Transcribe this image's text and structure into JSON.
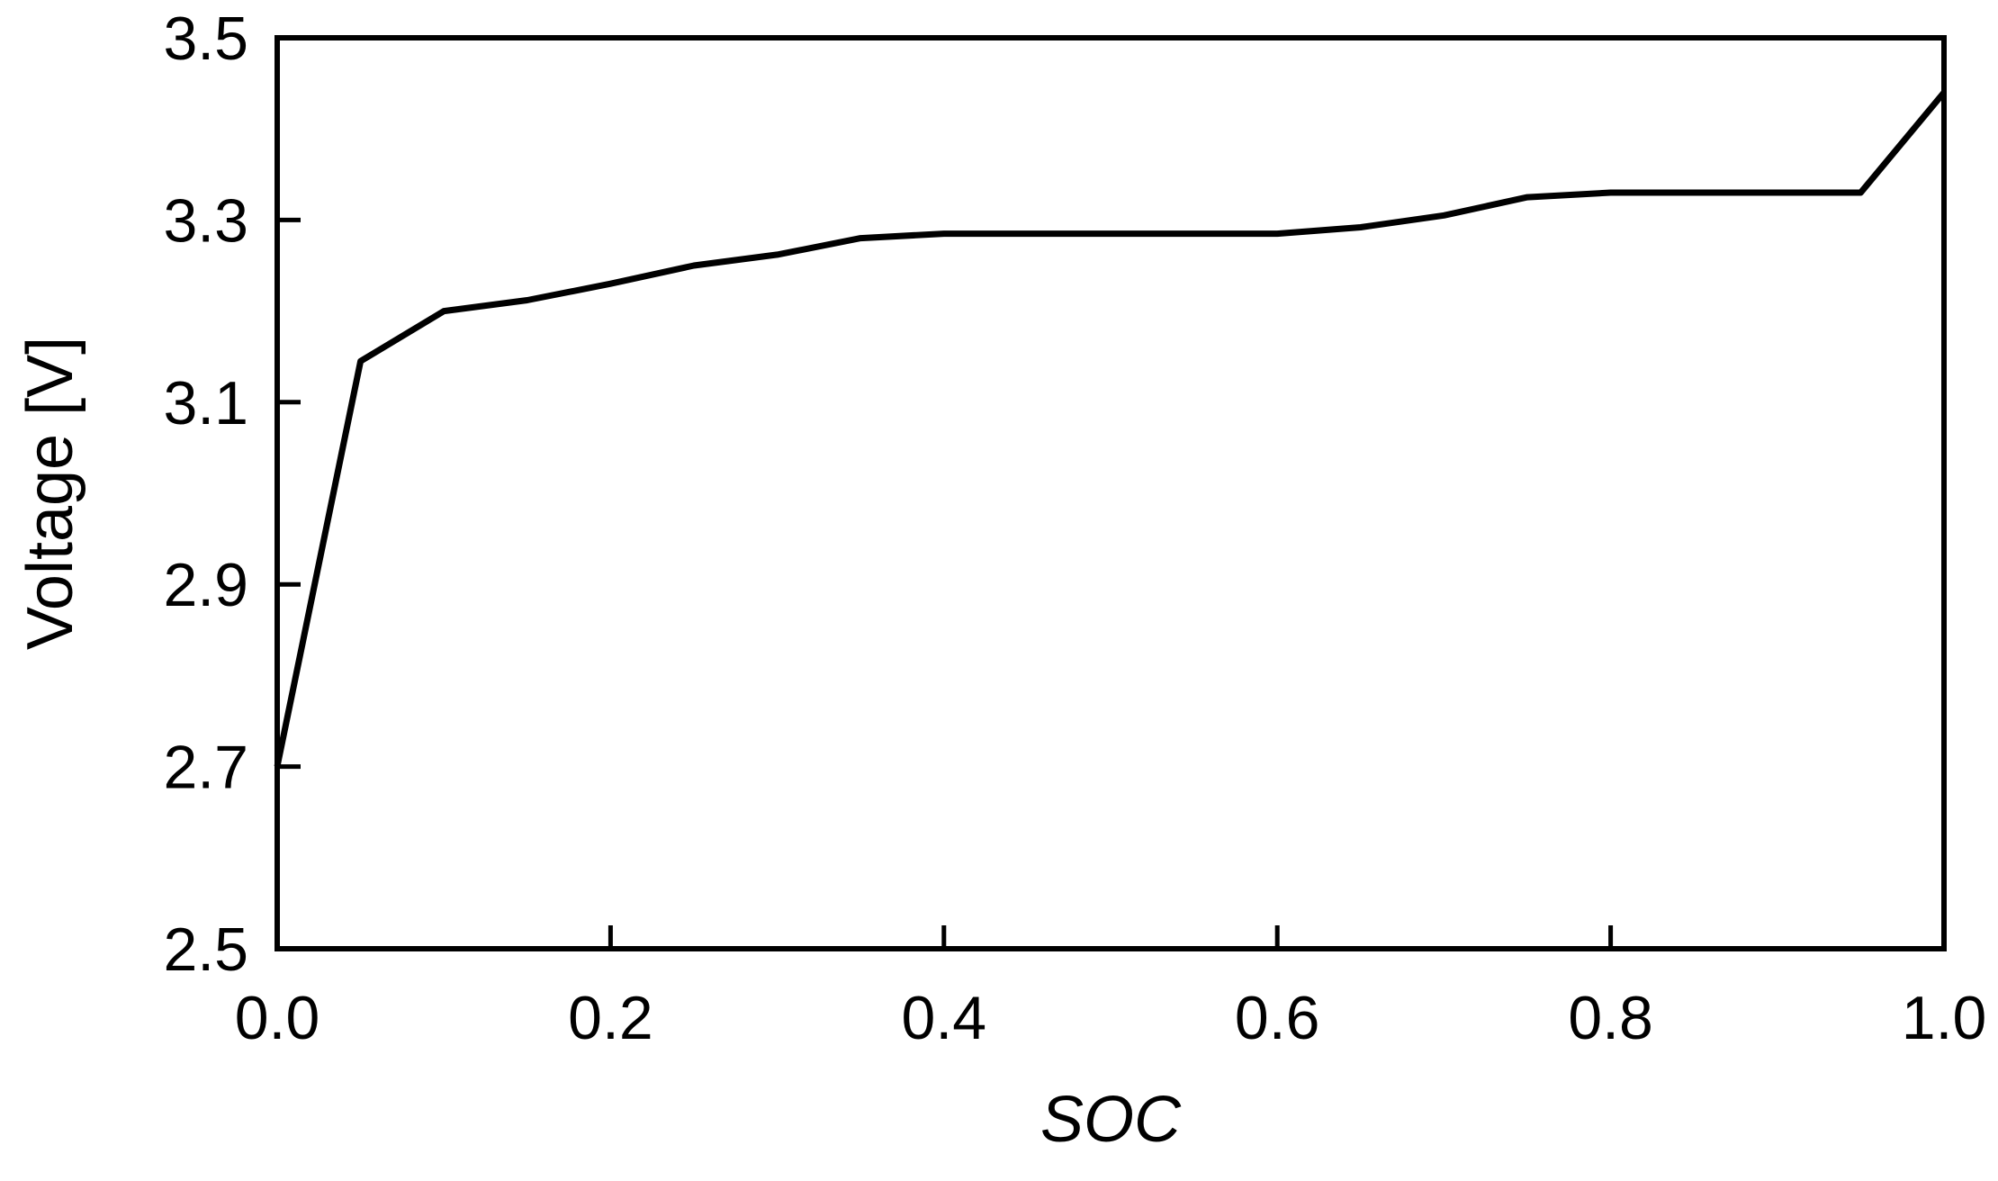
{
  "chart_data": {
    "type": "line",
    "title": "",
    "xlabel": "SOC",
    "ylabel": "Voltage [V]",
    "xlim": [
      0.0,
      1.0
    ],
    "ylim": [
      2.5,
      3.5
    ],
    "x_ticks": [
      "0.0",
      "0.2",
      "0.4",
      "0.6",
      "0.8",
      "1.0"
    ],
    "y_ticks": [
      "2.5",
      "2.7",
      "2.9",
      "3.1",
      "3.3",
      "3.5"
    ],
    "grid": false,
    "legend": "none",
    "line_color": "#000000",
    "series": [
      {
        "x": [
          0.0,
          0.05,
          0.1,
          0.15,
          0.2,
          0.25,
          0.3,
          0.35,
          0.4,
          0.45,
          0.5,
          0.55,
          0.6,
          0.65,
          0.7,
          0.75,
          0.8,
          0.85,
          0.9,
          0.95,
          1.0
        ],
        "y": [
          2.7,
          3.145,
          3.2,
          3.212,
          3.23,
          3.25,
          3.262,
          3.28,
          3.285,
          3.285,
          3.285,
          3.285,
          3.285,
          3.292,
          3.305,
          3.325,
          3.33,
          3.33,
          3.33,
          3.33,
          3.44
        ]
      }
    ]
  }
}
